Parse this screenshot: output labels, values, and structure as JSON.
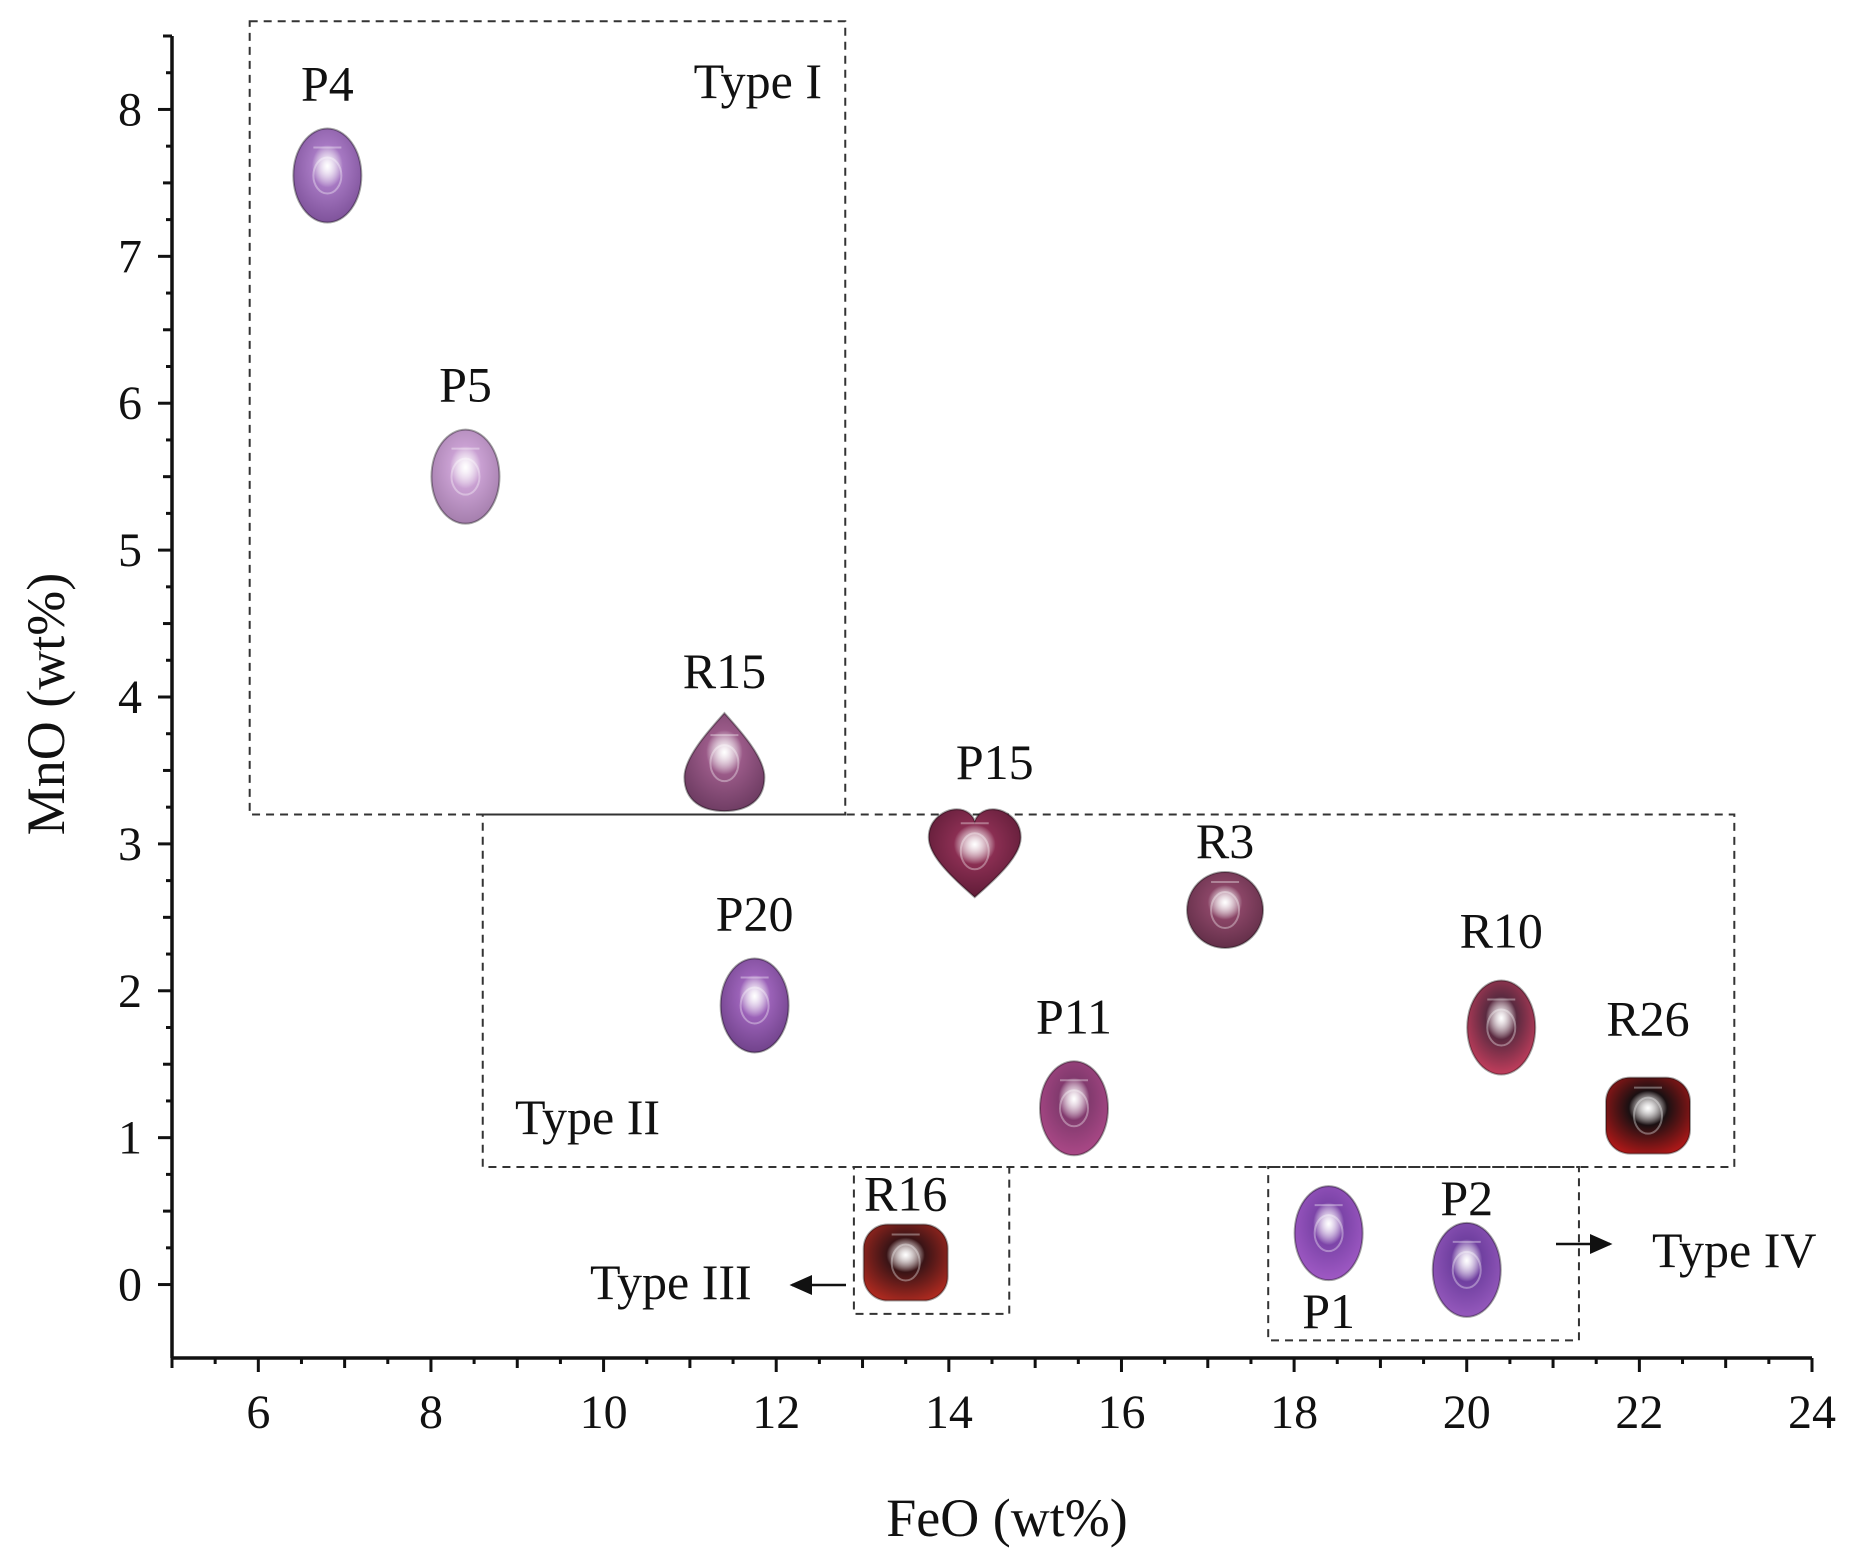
{
  "chart_data": {
    "type": "scatter",
    "title": "",
    "xlabel": "FeO (wt%)",
    "ylabel": "MnO (wt%)",
    "xlim": [
      5,
      24
    ],
    "ylim": [
      -0.5,
      8.5
    ],
    "xticks": [
      6,
      8,
      10,
      12,
      14,
      16,
      18,
      20,
      22,
      24
    ],
    "yticks": [
      0,
      1,
      2,
      3,
      4,
      5,
      6,
      7,
      8
    ],
    "grid": false,
    "points": [
      {
        "label": "P4",
        "x": 6.8,
        "y": 7.55,
        "shape": "oval",
        "color": "#a678c2",
        "dark": "#7a4e96"
      },
      {
        "label": "P5",
        "x": 8.4,
        "y": 5.5,
        "shape": "oval",
        "color": "#c9a0d2",
        "dark": "#a07aa8"
      },
      {
        "label": "R15",
        "x": 11.4,
        "y": 3.55,
        "shape": "pear",
        "color": "#9a5a88",
        "dark": "#6b3a60"
      },
      {
        "label": "P15",
        "x": 14.3,
        "y": 2.95,
        "shape": "heart",
        "color": "#8a2e52",
        "dark": "#5a1a34"
      },
      {
        "label": "R3",
        "x": 17.2,
        "y": 2.55,
        "shape": "round",
        "color": "#8a4566",
        "dark": "#5e2c45"
      },
      {
        "label": "P20",
        "x": 11.75,
        "y": 1.9,
        "shape": "oval",
        "color": "#9b62b8",
        "dark": "#6c3f86"
      },
      {
        "label": "P11",
        "x": 15.45,
        "y": 1.2,
        "shape": "oval",
        "color": "#823a6e",
        "dark": "#b04a8a"
      },
      {
        "label": "R10",
        "x": 20.4,
        "y": 1.75,
        "shape": "oval",
        "color": "#5a2a40",
        "dark": "#d04060"
      },
      {
        "label": "R26",
        "x": 22.1,
        "y": 1.15,
        "shape": "cushion",
        "color": "#1a1012",
        "dark": "#b01818"
      },
      {
        "label": "R16",
        "x": 13.5,
        "y": 0.15,
        "shape": "cushion",
        "color": "#3a1416",
        "dark": "#b02a20"
      },
      {
        "label": "P1",
        "x": 18.4,
        "y": 0.35,
        "shape": "oval",
        "color": "#7c44a8",
        "dark": "#a45cc8"
      },
      {
        "label": "P2",
        "x": 20.0,
        "y": 0.1,
        "shape": "oval",
        "color": "#7040a0",
        "dark": "#9a5cc0"
      }
    ],
    "regions": [
      {
        "name": "Type I",
        "x0": 5.9,
        "x1": 12.8,
        "y0": 3.2,
        "y1": 8.6
      },
      {
        "name": "Type II",
        "x0": 8.6,
        "x1": 23.1,
        "y0": 0.8,
        "y1": 3.2
      },
      {
        "name": "Type III",
        "x0": 12.9,
        "x1": 14.7,
        "y0": -0.2,
        "y1": 0.8
      },
      {
        "name": "Type IV",
        "x0": 17.7,
        "x1": 21.3,
        "y0": -0.38,
        "y1": 0.8
      }
    ]
  }
}
